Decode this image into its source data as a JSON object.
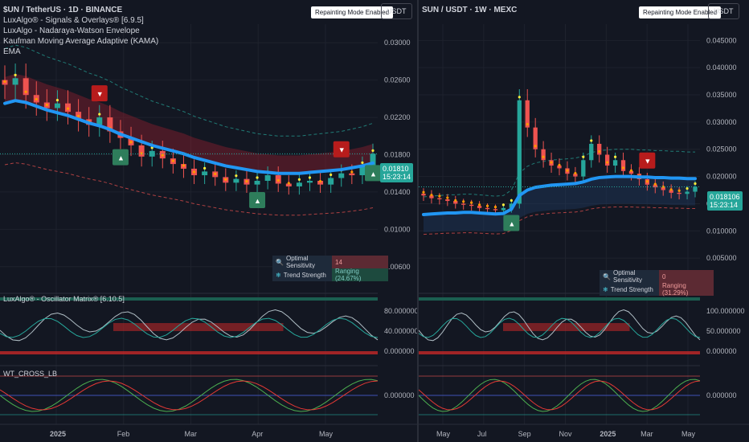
{
  "left": {
    "title": "$UN / TetherUS · 1D · BINANCE",
    "indicators": [
      "LuxAlgo® - Signals & Overlays® [6.9.5]",
      "LuxAlgo - Nadaraya-Watson Envelope",
      "Kaufman Moving Average Adaptive (KAMA)",
      "EMA"
    ],
    "badge": "Repainting Mode Enabled",
    "currency": "USDT",
    "price_label": "0.01810",
    "countdown": "15:23:14",
    "table": {
      "r1_label": "Optimal Sensitivity",
      "r1_value": "14",
      "r2_label": "Trend Strength",
      "r2_value": "Ranging (24.67%)"
    },
    "osc_title": "LuxAlgo® - Oscillator Matrix® [6.10.5]",
    "wt_title": "WT_CROSS_LB",
    "chart_data": {
      "type": "line",
      "x": [
        "2025",
        "Feb",
        "Mar",
        "Apr",
        "May"
      ],
      "yticks": [
        "0.03000",
        "0.02600",
        "0.02200",
        "0.01800",
        "0.01400",
        "0.01000",
        "0.00600"
      ],
      "osc_yticks": [
        "80.000000",
        "40.000000",
        "0.000000"
      ],
      "wt_yticks": [
        "0.000000"
      ],
      "close": [
        0.0255,
        0.0262,
        0.0244,
        0.0236,
        0.023,
        0.0235,
        0.0226,
        0.0218,
        0.0212,
        0.022,
        0.0205,
        0.0198,
        0.019,
        0.0178,
        0.0184,
        0.0176,
        0.017,
        0.0165,
        0.0158,
        0.0162,
        0.0156,
        0.015,
        0.0154,
        0.0148,
        0.0152,
        0.0158,
        0.0149,
        0.0146,
        0.015,
        0.0152,
        0.0148,
        0.0155,
        0.016,
        0.0158,
        0.0168,
        0.0181
      ],
      "kama": [
        0.0235,
        0.0238,
        0.0236,
        0.0232,
        0.0228,
        0.0225,
        0.0222,
        0.0218,
        0.0214,
        0.0211,
        0.0207,
        0.0202,
        0.0198,
        0.0194,
        0.019,
        0.0187,
        0.0184,
        0.0181,
        0.0177,
        0.0174,
        0.0171,
        0.0168,
        0.0166,
        0.0164,
        0.0162,
        0.0161,
        0.016,
        0.016,
        0.016,
        0.0161,
        0.0162,
        0.0163,
        0.0164,
        0.0166,
        0.0168,
        0.0171
      ],
      "ylim": [
        0.004,
        0.032
      ]
    }
  },
  "right": {
    "title": "SUN / USDT · 1W · MEXC",
    "badge": "Repainting Mode Enabled",
    "currency": "USDT",
    "price_label": "0.018106",
    "countdown": "15:23:14",
    "table": {
      "r1_label": "Optimal Sensitivity",
      "r1_value": "0",
      "r2_label": "Trend Strength",
      "r2_value": "Ranging (31.29%)"
    },
    "chart_data": {
      "type": "line",
      "x": [
        "May",
        "Jul",
        "Sep",
        "Nov",
        "2025",
        "Mar",
        "May"
      ],
      "yticks": [
        "0.045000",
        "0.040000",
        "0.035000",
        "0.030000",
        "0.025000",
        "0.020000",
        "0.015000",
        "0.010000",
        "0.005000"
      ],
      "osc_yticks": [
        "100.000000",
        "50.000000",
        "0.000000"
      ],
      "wt_yticks": [
        "0.000000"
      ],
      "close": [
        0.0165,
        0.016,
        0.0158,
        0.0155,
        0.015,
        0.0148,
        0.0146,
        0.0142,
        0.014,
        0.0138,
        0.0142,
        0.015,
        0.034,
        0.029,
        0.025,
        0.023,
        0.022,
        0.0215,
        0.0205,
        0.02,
        0.023,
        0.026,
        0.024,
        0.022,
        0.023,
        0.021,
        0.0205,
        0.0195,
        0.0185,
        0.018,
        0.0175,
        0.017,
        0.0168,
        0.0172,
        0.0181
      ],
      "kama": [
        0.013,
        0.0131,
        0.0132,
        0.0133,
        0.0133,
        0.0134,
        0.0134,
        0.0133,
        0.0132,
        0.0131,
        0.0132,
        0.014,
        0.0165,
        0.0175,
        0.018,
        0.0182,
        0.0184,
        0.0185,
        0.0186,
        0.0187,
        0.019,
        0.0195,
        0.0198,
        0.0199,
        0.02,
        0.02,
        0.02,
        0.0199,
        0.0199,
        0.0198,
        0.0198,
        0.0197,
        0.0197,
        0.0196,
        0.0196
      ],
      "ylim": [
        0.0,
        0.048
      ]
    }
  },
  "colors": {
    "bull": "#26a69a",
    "bear": "#ef5350",
    "kama": "#2196f3",
    "bg": "#131722",
    "grid": "#1e222d"
  }
}
